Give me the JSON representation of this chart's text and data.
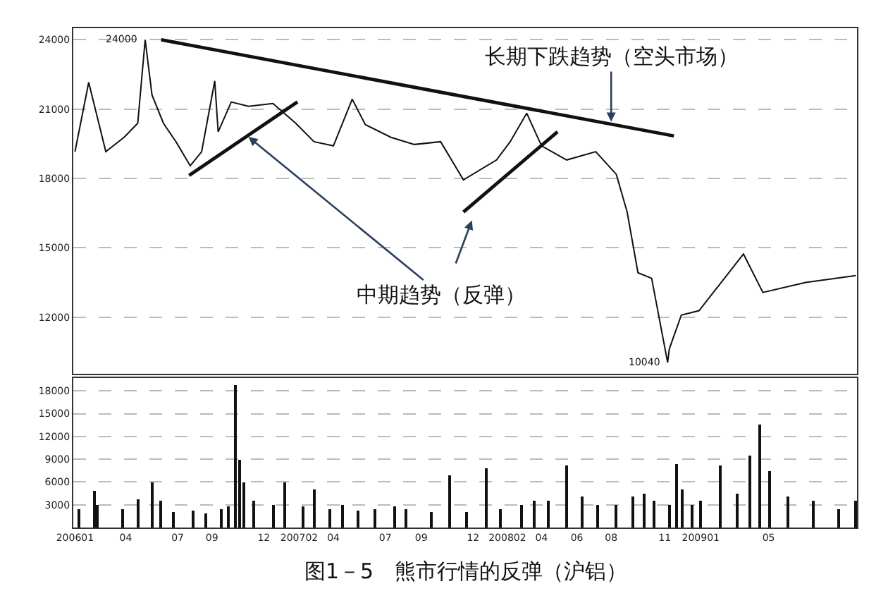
{
  "chart_data": [
    {
      "type": "line",
      "x": [
        "2006-01-04",
        "2006-01-28",
        "2006-02-27",
        "2006-03-31",
        "2006-04-24",
        "2006-05-07",
        "2006-05-19",
        "2006-06-08",
        "2006-06-30",
        "2006-07-25",
        "2006-08-14",
        "2006-09-06",
        "2006-09-12",
        "2006-10-05",
        "2006-11-04",
        "2006-12-17",
        "2007-01-26",
        "2007-02-27",
        "2007-04-02",
        "2007-05-05",
        "2007-05-28",
        "2007-07-12",
        "2007-08-22",
        "2007-10-07",
        "2007-11-16",
        "2008-01-13",
        "2008-02-06",
        "2008-03-06",
        "2008-04-01",
        "2008-05-15",
        "2008-07-05",
        "2008-08-10",
        "2008-08-29",
        "2008-09-17",
        "2008-10-11",
        "2008-11-08",
        "2008-11-11",
        "2008-12-02",
        "2009-01-02",
        "2009-03-21",
        "2009-04-24",
        "2009-07-08",
        "2009-10-04"
      ],
      "series": [
        {
          "color": "#111111",
          "values": [
            19160,
            22160,
            19160,
            19780,
            20390,
            24000,
            21610,
            20390,
            19590,
            18550,
            19160,
            22220,
            20020,
            21310,
            21120,
            21240,
            20390,
            19590,
            19410,
            21430,
            20330,
            19780,
            19470,
            19590,
            17940,
            18800,
            19590,
            20820,
            19410,
            18800,
            19160,
            18180,
            16550,
            13920,
            13680,
            10040,
            10630,
            12090,
            12280,
            14730,
            13070,
            13500,
            13800
          ]
        },
        {
          "type": "line",
          "color": "#111111",
          "x": [
            "2006-06-04",
            "2008-11-19"
          ],
          "values": [
            24000,
            19840
          ]
        },
        {
          "type": "line",
          "color": "#111111",
          "x": [
            "2006-07-23",
            "2007-01-29"
          ],
          "values": [
            18130,
            21310
          ]
        },
        {
          "type": "line",
          "color": "#111111",
          "x": [
            "2007-11-16",
            "2008-04-29"
          ],
          "values": [
            16550,
            20020
          ]
        }
      ],
      "xlim": [
        "2006-01-01",
        "2009-10-06"
      ],
      "ylim": [
        9550,
        24500
      ],
      "yticks": [
        12000,
        15000,
        18000,
        21000,
        24000
      ],
      "grid": "y",
      "tick_labels": "y",
      "annotations": [
        {
          "text": "24000",
          "x": "2006-05-07",
          "y": 24000
        },
        {
          "text": "10040",
          "x": "2008-11-08",
          "y": 10040
        },
        {
          "text": "长期下跌趋势（空头市场）",
          "x": "2008-08-01",
          "y": 20460
        },
        {
          "text": "中期趋势（反弹）",
          "x": "2006-11-04",
          "y": 19800
        }
      ]
    },
    {
      "type": "bar",
      "color": "#111111",
      "x": [
        "2006-01-12",
        "2006-02-08",
        "2006-02-13",
        "2006-03-28",
        "2006-04-26",
        "2006-05-19",
        "2006-06-04",
        "2006-06-26",
        "2006-07-30",
        "2006-08-21",
        "2006-09-17",
        "2006-09-30",
        "2006-10-12",
        "2006-10-19",
        "2006-10-28",
        "2006-11-14",
        "2006-12-17",
        "2007-01-07",
        "2007-02-07",
        "2007-03-01",
        "2007-03-26",
        "2007-04-18",
        "2007-05-16",
        "2007-06-15",
        "2007-07-18",
        "2007-08-08",
        "2007-09-20",
        "2007-10-22",
        "2007-11-21",
        "2007-12-27",
        "2008-01-20",
        "2008-02-25",
        "2008-03-20",
        "2008-04-12",
        "2008-05-15",
        "2008-06-11",
        "2008-07-09",
        "2008-08-10",
        "2008-09-08",
        "2008-09-27",
        "2008-10-15",
        "2008-11-11",
        "2008-11-24",
        "2008-12-05",
        "2008-12-21",
        "2009-01-05",
        "2009-02-09",
        "2009-03-10",
        "2009-04-01",
        "2009-04-19",
        "2009-05-07",
        "2009-06-07",
        "2009-07-21",
        "2009-09-03",
        "2009-10-04"
      ],
      "values": [
        2500,
        4900,
        3000,
        2500,
        3800,
        6000,
        3500,
        2000,
        2200,
        1800,
        2500,
        2800,
        18800,
        9000,
        6000,
        3500,
        3000,
        6000,
        2800,
        5000,
        2500,
        3000,
        2200,
        2500,
        2800,
        2500,
        2000,
        6800,
        2000,
        7750,
        2500,
        3000,
        3500,
        3500,
        8100,
        4000,
        3000,
        3000,
        4000,
        4500,
        3500,
        3000,
        8300,
        5000,
        3000,
        3500,
        8100,
        4500,
        9450,
        13600,
        7500,
        4000,
        3500,
        2500,
        3500
      ],
      "xlim": [
        "2006-01-01",
        "2009-10-06"
      ],
      "xticks": [
        {
          "value": "2006-01-04",
          "label": "200601"
        },
        {
          "value": "2006-04-03",
          "label": "04"
        },
        {
          "value": "2006-07-03",
          "label": "07"
        },
        {
          "value": "2006-09-01",
          "label": "09"
        },
        {
          "value": "2006-12-01",
          "label": "12"
        },
        {
          "value": "2007-02-01",
          "label": "200702"
        },
        {
          "value": "2007-04-02",
          "label": "04"
        },
        {
          "value": "2007-07-02",
          "label": "07"
        },
        {
          "value": "2007-09-03",
          "label": "09"
        },
        {
          "value": "2007-12-03",
          "label": "12"
        },
        {
          "value": "2008-02-01",
          "label": "200802"
        },
        {
          "value": "2008-04-01",
          "label": "04"
        },
        {
          "value": "2008-06-02",
          "label": "06"
        },
        {
          "value": "2008-08-01",
          "label": "08"
        },
        {
          "value": "2008-11-03",
          "label": "11"
        },
        {
          "value": "2009-01-05",
          "label": "200901"
        },
        {
          "value": "2009-05-04",
          "label": "05"
        }
      ],
      "ylim": [
        0,
        19700
      ],
      "yticks": [
        3000,
        6000,
        9000,
        12000,
        15000,
        18000
      ],
      "grid": "y",
      "annotations": [
        "图1－5　熊市行情的反弹（沪铝）"
      ]
    }
  ]
}
